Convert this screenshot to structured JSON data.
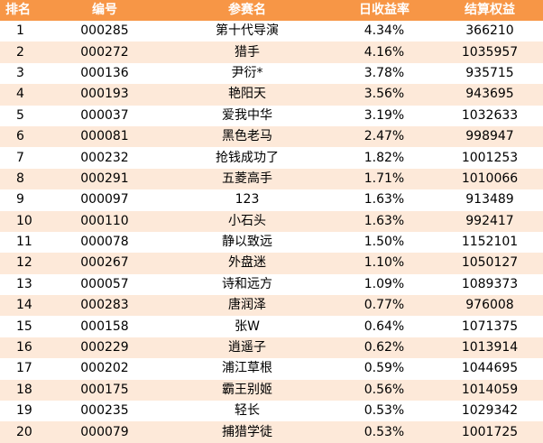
{
  "table": {
    "headers": {
      "rank": "排名",
      "id": "编号",
      "name": "参赛名",
      "daily_return": "日收益率",
      "equity": "结算权益"
    },
    "rows": [
      {
        "rank": "1",
        "id": "000285",
        "name": "第十代导演",
        "daily_return": "4.34%",
        "equity": "366210"
      },
      {
        "rank": "2",
        "id": "000272",
        "name": "猎手",
        "daily_return": "4.16%",
        "equity": "1035957"
      },
      {
        "rank": "3",
        "id": "000136",
        "name": "尹衍*",
        "daily_return": "3.78%",
        "equity": "935715"
      },
      {
        "rank": "4",
        "id": "000193",
        "name": "艳阳天",
        "daily_return": "3.56%",
        "equity": "943695"
      },
      {
        "rank": "5",
        "id": "000037",
        "name": "爱我中华",
        "daily_return": "3.19%",
        "equity": "1032633"
      },
      {
        "rank": "6",
        "id": "000081",
        "name": "黑色老马",
        "daily_return": "2.47%",
        "equity": "998947"
      },
      {
        "rank": "7",
        "id": "000232",
        "name": "抢钱成功了",
        "daily_return": "1.82%",
        "equity": "1001253"
      },
      {
        "rank": "8",
        "id": "000291",
        "name": "五菱高手",
        "daily_return": "1.71%",
        "equity": "1010066"
      },
      {
        "rank": "9",
        "id": "000097",
        "name": "123",
        "daily_return": "1.63%",
        "equity": "913489"
      },
      {
        "rank": "10",
        "id": "000110",
        "name": "小石头",
        "daily_return": "1.63%",
        "equity": "992417"
      },
      {
        "rank": "11",
        "id": "000078",
        "name": "静以致远",
        "daily_return": "1.50%",
        "equity": "1152101"
      },
      {
        "rank": "12",
        "id": "000267",
        "name": "外盘迷",
        "daily_return": "1.10%",
        "equity": "1050127"
      },
      {
        "rank": "13",
        "id": "000057",
        "name": "诗和远方",
        "daily_return": "1.09%",
        "equity": "1089373"
      },
      {
        "rank": "14",
        "id": "000283",
        "name": "唐润泽",
        "daily_return": "0.77%",
        "equity": "976008"
      },
      {
        "rank": "15",
        "id": "000158",
        "name": "张W",
        "daily_return": "0.64%",
        "equity": "1071375"
      },
      {
        "rank": "16",
        "id": "000229",
        "name": "逍遥子",
        "daily_return": "0.62%",
        "equity": "1013914"
      },
      {
        "rank": "17",
        "id": "000202",
        "name": "浦江草根",
        "daily_return": "0.59%",
        "equity": "1044695"
      },
      {
        "rank": "18",
        "id": "000175",
        "name": "霸王别姬",
        "daily_return": "0.56%",
        "equity": "1014059"
      },
      {
        "rank": "19",
        "id": "000235",
        "name": "轻长",
        "daily_return": "0.53%",
        "equity": "1029342"
      },
      {
        "rank": "20",
        "id": "000079",
        "name": "捕猎学徒",
        "daily_return": "0.53%",
        "equity": "1001725"
      }
    ]
  },
  "colors": {
    "header_bg": "#f79646",
    "header_text": "#ffffff",
    "row_alt_bg": "#fde9d9",
    "row_bg": "#ffffff"
  }
}
